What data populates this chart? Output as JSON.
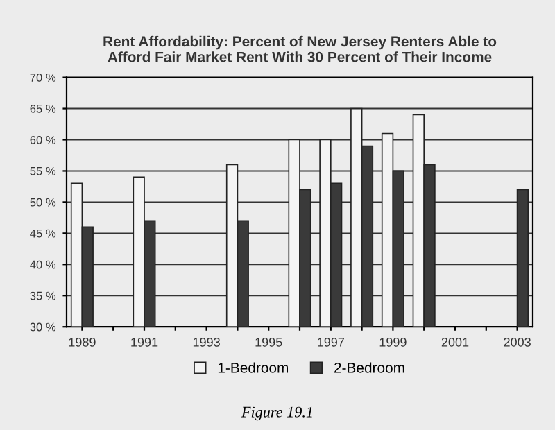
{
  "chart_data": {
    "type": "bar",
    "title": "Rent Affordability: Percent of New Jersey Renters Able to\nAfford Fair Market Rent With 30 Percent of Their Income",
    "categories": [
      "1989",
      null,
      "1991",
      null,
      "1993",
      null,
      "1995",
      null,
      "1997",
      null,
      "1999",
      null,
      "2001",
      null,
      "2003"
    ],
    "series": [
      {
        "name": "1-Bedroom",
        "color": "#f4f4f4",
        "values": [
          53,
          null,
          54,
          null,
          null,
          56,
          null,
          60,
          60,
          65,
          61,
          64,
          null,
          null,
          null
        ]
      },
      {
        "name": "2-Bedroom",
        "color": "#3a3a3a",
        "values": [
          46,
          null,
          47,
          null,
          null,
          47,
          null,
          52,
          53,
          59,
          55,
          56,
          null,
          null,
          52
        ]
      }
    ],
    "ylim": [
      30,
      70
    ],
    "yticks": [
      {
        "value": 30,
        "label": "30 %"
      },
      {
        "value": 35,
        "label": "35 %"
      },
      {
        "value": 40,
        "label": "40 %"
      },
      {
        "value": 45,
        "label": "45 %"
      },
      {
        "value": 50,
        "label": "50 %"
      },
      {
        "value": 55,
        "label": "55 %"
      },
      {
        "value": 60,
        "label": "60 %"
      },
      {
        "value": 65,
        "label": "65 %"
      },
      {
        "value": 70,
        "label": "70 %"
      }
    ],
    "grid": "y",
    "legend": "bottom",
    "annotations": [
      "Figure 19.1"
    ]
  }
}
